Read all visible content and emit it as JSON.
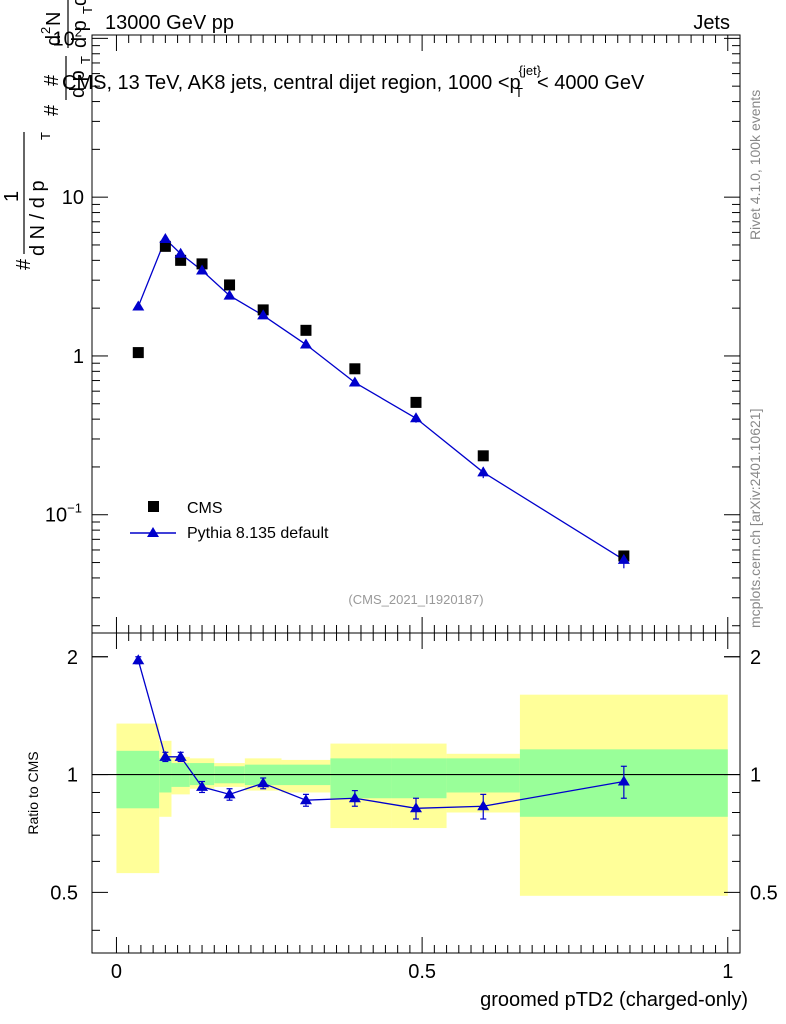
{
  "header": {
    "left": "13000 GeV pp",
    "right": "Jets"
  },
  "side_labels": {
    "rivet": "Rivet 4.1.0,  100k events",
    "mcplots": "mcplots.cern.ch [arXiv:2401.10621]"
  },
  "watermark": "(CMS_2021_I1920187)",
  "colors": {
    "mc": "#0000cc",
    "band_outer": "#ffff99",
    "band_inner": "#99ff99",
    "data": "#000000"
  },
  "chart_data": [
    {
      "type": "scatter",
      "panel": "main",
      "title": "CMS, 13 TeV, AK8 jets, central dijet region, 1000 <",
      "title_var": "p",
      "title_var_sub": "T",
      "title_var_sup": "{jet}",
      "title_end": "< 4000 GeV",
      "ylabel_parts": {
        "hash1": "#",
        "one": "1",
        "dN": "d N / d p",
        "T1": "T",
        "hash2": "#",
        "dp": "d p",
        "T2": "T",
        "hash3": "#",
        "d2N": "d",
        "sup2": "2",
        "N": "N",
        "dpdl": "d p",
        "T3": "T",
        "dl": " dλ"
      },
      "yscale": "log",
      "ylim": [
        0.018,
        105
      ],
      "xlim": [
        -0.04,
        1.02
      ],
      "y_ticks": [
        {
          "value": 100,
          "base": "10",
          "exp": "2"
        },
        {
          "value": 10,
          "base": "10",
          "exp": ""
        },
        {
          "value": 1,
          "base": "1",
          "exp": ""
        },
        {
          "value": 0.1,
          "base": "10",
          "exp": "−1"
        }
      ],
      "legend_position": "middle-left",
      "series": [
        {
          "name": "CMS",
          "marker": "square",
          "x": [
            0.0357,
            0.08,
            0.105,
            0.14,
            0.185,
            0.24,
            0.31,
            0.39,
            0.49,
            0.6,
            0.83
          ],
          "y": [
            1.05,
            4.9,
            4.0,
            3.8,
            2.8,
            1.95,
            1.45,
            0.83,
            0.51,
            0.235,
            0.055
          ]
        },
        {
          "name": "Pythia 8.135 default",
          "marker": "triangle",
          "x": [
            0.0357,
            0.08,
            0.105,
            0.14,
            0.185,
            0.24,
            0.31,
            0.39,
            0.49,
            0.6,
            0.83
          ],
          "y": [
            2.05,
            5.45,
            4.4,
            3.45,
            2.4,
            1.8,
            1.18,
            0.68,
            0.405,
            0.185,
            0.052
          ],
          "err": [
            0.05,
            0.15,
            0.12,
            0.1,
            0.07,
            0.05,
            0.04,
            0.025,
            0.025,
            0.015,
            0.006
          ]
        }
      ]
    },
    {
      "type": "line",
      "panel": "ratio",
      "ylabel": "Ratio to CMS",
      "ylim": [
        0.35,
        2.3
      ],
      "xlim": [
        -0.04,
        1.02
      ],
      "x_ticks": [
        {
          "value": 0,
          "label": "0"
        },
        {
          "value": 0.5,
          "label": "0.5"
        },
        {
          "value": 1,
          "label": "1"
        }
      ],
      "y_ticks": [
        {
          "value": 2,
          "label": "2"
        },
        {
          "value": 1,
          "label": "1"
        },
        {
          "value": 0.5,
          "label": "0.5"
        }
      ],
      "xlabel": "groomed pTD2 (charged-only)",
      "bins": [
        {
          "lo": 0.0,
          "hi": 0.07,
          "inner_lo": 0.82,
          "inner_hi": 1.15,
          "outer_lo": 0.56,
          "outer_hi": 1.35
        },
        {
          "lo": 0.07,
          "hi": 0.09,
          "inner_lo": 0.9,
          "inner_hi": 1.1,
          "outer_lo": 0.78,
          "outer_hi": 1.22
        },
        {
          "lo": 0.09,
          "hi": 0.12,
          "inner_lo": 0.93,
          "inner_hi": 1.07,
          "outer_lo": 0.89,
          "outer_hi": 1.11
        },
        {
          "lo": 0.12,
          "hi": 0.16,
          "inner_lo": 0.94,
          "inner_hi": 1.07,
          "outer_lo": 0.92,
          "outer_hi": 1.1
        },
        {
          "lo": 0.16,
          "hi": 0.21,
          "inner_lo": 0.95,
          "inner_hi": 1.05,
          "outer_lo": 0.93,
          "outer_hi": 1.07
        },
        {
          "lo": 0.21,
          "hi": 0.27,
          "inner_lo": 0.94,
          "inner_hi": 1.06,
          "outer_lo": 0.91,
          "outer_hi": 1.1
        },
        {
          "lo": 0.27,
          "hi": 0.35,
          "inner_lo": 0.94,
          "inner_hi": 1.06,
          "outer_lo": 0.9,
          "outer_hi": 1.09
        },
        {
          "lo": 0.35,
          "hi": 0.45,
          "inner_lo": 0.87,
          "inner_hi": 1.1,
          "outer_lo": 0.73,
          "outer_hi": 1.2
        },
        {
          "lo": 0.45,
          "hi": 0.54,
          "inner_lo": 0.87,
          "inner_hi": 1.1,
          "outer_lo": 0.73,
          "outer_hi": 1.2
        },
        {
          "lo": 0.54,
          "hi": 0.66,
          "inner_lo": 0.9,
          "inner_hi": 1.1,
          "outer_lo": 0.8,
          "outer_hi": 1.13
        },
        {
          "lo": 0.66,
          "hi": 1.0,
          "inner_lo": 0.78,
          "inner_hi": 1.16,
          "outer_lo": 0.49,
          "outer_hi": 1.6
        }
      ],
      "series": [
        {
          "name": "Pythia 8.135 default / CMS",
          "x": [
            0.0357,
            0.08,
            0.105,
            0.14,
            0.185,
            0.24,
            0.31,
            0.39,
            0.49,
            0.6,
            0.83
          ],
          "y": [
            1.96,
            1.11,
            1.11,
            0.93,
            0.89,
            0.95,
            0.86,
            0.87,
            0.82,
            0.83,
            0.96
          ],
          "err": [
            0.04,
            0.03,
            0.03,
            0.03,
            0.03,
            0.03,
            0.03,
            0.04,
            0.05,
            0.06,
            0.09
          ]
        }
      ]
    }
  ]
}
